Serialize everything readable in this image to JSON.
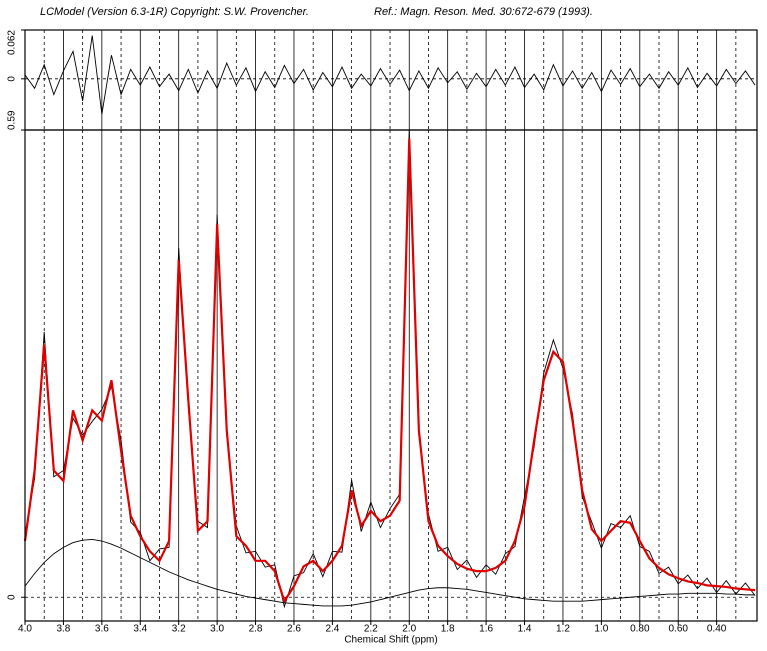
{
  "header": {
    "left": "LCModel (Version 6.3-1R) Copyright: S.W. Provencher.",
    "right": "Ref.: Magn. Reson. Med. 30:672-679 (1993)."
  },
  "chart_data": [
    {
      "type": "line",
      "x": [
        4.0,
        3.95,
        3.9,
        3.85,
        3.8,
        3.75,
        3.7,
        3.65,
        3.6,
        3.55,
        3.5,
        3.45,
        3.4,
        3.35,
        3.3,
        3.25,
        3.2,
        3.15,
        3.1,
        3.05,
        3.0,
        2.95,
        2.9,
        2.85,
        2.8,
        2.75,
        2.7,
        2.65,
        2.6,
        2.55,
        2.5,
        2.45,
        2.4,
        2.35,
        2.3,
        2.25,
        2.2,
        2.15,
        2.1,
        2.05,
        2.0,
        1.95,
        1.9,
        1.85,
        1.8,
        1.75,
        1.7,
        1.65,
        1.6,
        1.55,
        1.5,
        1.45,
        1.4,
        1.35,
        1.3,
        1.25,
        1.2,
        1.15,
        1.1,
        1.05,
        1.0,
        0.95,
        0.9,
        0.85,
        0.8,
        0.75,
        0.7,
        0.65,
        0.6,
        0.55,
        0.5,
        0.45,
        0.4,
        0.35,
        0.3,
        0.25,
        0.2
      ],
      "series": [
        {
          "color": "#000000",
          "values": [
            0.005,
            -0.012,
            0.018,
            -0.02,
            0.01,
            0.035,
            -0.028,
            0.055,
            -0.045,
            0.03,
            -0.02,
            0.012,
            -0.008,
            0.015,
            -0.01,
            0.006,
            -0.015,
            0.012,
            -0.018,
            0.01,
            -0.012,
            0.02,
            -0.008,
            0.014,
            -0.016,
            0.009,
            -0.011,
            0.017,
            -0.006,
            0.012,
            -0.014,
            0.008,
            -0.01,
            0.015,
            -0.012,
            0.006,
            -0.009,
            0.013,
            -0.007,
            0.011,
            -0.015,
            0.01,
            -0.012,
            0.014,
            -0.005,
            0.009,
            -0.013,
            0.007,
            -0.01,
            0.012,
            -0.008,
            0.015,
            -0.011,
            0.006,
            -0.014,
            0.018,
            -0.009,
            0.01,
            -0.012,
            0.008,
            -0.016,
            0.011,
            -0.007,
            0.013,
            -0.01,
            0.006,
            -0.012,
            0.009,
            -0.008,
            0.014,
            -0.011,
            0.007,
            -0.009,
            0.012,
            -0.006,
            0.01,
            -0.008
          ]
        }
      ],
      "xlim": [
        4.0,
        0.19
      ],
      "ylim": [
        -0.065,
        0.062
      ],
      "yticks": [
        0,
        0.062
      ],
      "xgrid": [
        3.9,
        3.8,
        3.7,
        3.6,
        3.5,
        3.4,
        3.3,
        3.2,
        3.1,
        3.0,
        2.9,
        2.8,
        2.7,
        2.6,
        2.5,
        2.4,
        2.3,
        2.2,
        2.1,
        2.0,
        1.9,
        1.8,
        1.7,
        1.6,
        1.5,
        1.4,
        1.3,
        1.2,
        1.1,
        1.0,
        0.9,
        0.8,
        0.7,
        0.6,
        0.5,
        0.4,
        0.3
      ]
    },
    {
      "type": "line",
      "x_label": "Chemical Shift (ppm)",
      "x": [
        4.0,
        3.95,
        3.9,
        3.85,
        3.8,
        3.75,
        3.7,
        3.65,
        3.6,
        3.55,
        3.5,
        3.45,
        3.4,
        3.35,
        3.3,
        3.25,
        3.2,
        3.15,
        3.1,
        3.05,
        3.0,
        2.95,
        2.9,
        2.85,
        2.8,
        2.75,
        2.7,
        2.65,
        2.6,
        2.55,
        2.5,
        2.45,
        2.4,
        2.35,
        2.3,
        2.25,
        2.2,
        2.15,
        2.1,
        2.05,
        2.0,
        1.95,
        1.9,
        1.85,
        1.8,
        1.75,
        1.7,
        1.65,
        1.6,
        1.55,
        1.5,
        1.45,
        1.4,
        1.35,
        1.3,
        1.25,
        1.2,
        1.15,
        1.1,
        1.05,
        1.0,
        0.95,
        0.9,
        0.85,
        0.8,
        0.75,
        0.7,
        0.65,
        0.6,
        0.55,
        0.5,
        0.45,
        0.4,
        0.35,
        0.3,
        0.25,
        0.2
      ],
      "series": [
        {
          "color": "#000000",
          "values": [
            0.08,
            0.15,
            0.335,
            0.152,
            0.16,
            0.226,
            0.205,
            0.222,
            0.237,
            0.266,
            0.198,
            0.095,
            0.082,
            0.046,
            0.061,
            0.063,
            0.441,
            0.24,
            0.096,
            0.088,
            0.483,
            0.205,
            0.09,
            0.056,
            0.058,
            0.038,
            0.041,
            -0.012,
            0.027,
            0.031,
            0.055,
            0.026,
            0.058,
            0.057,
            0.148,
            0.083,
            0.12,
            0.088,
            0.112,
            0.13,
            0.59,
            0.204,
            0.105,
            0.058,
            0.063,
            0.035,
            0.047,
            0.025,
            0.041,
            0.029,
            0.055,
            0.064,
            0.127,
            0.19,
            0.283,
            0.325,
            0.289,
            0.231,
            0.127,
            0.095,
            0.062,
            0.093,
            0.088,
            0.103,
            0.064,
            0.058,
            0.03,
            0.038,
            0.017,
            0.028,
            0.011,
            0.024,
            0.006,
            0.021,
            0.004,
            0.018,
            0.002
          ]
        },
        {
          "color": "#e00000",
          "values": [
            0.071,
            0.16,
            0.319,
            0.16,
            0.147,
            0.236,
            0.198,
            0.236,
            0.223,
            0.274,
            0.185,
            0.103,
            0.077,
            0.058,
            0.046,
            0.071,
            0.426,
            0.249,
            0.084,
            0.096,
            0.471,
            0.211,
            0.077,
            0.065,
            0.046,
            0.046,
            0.033,
            -0.005,
            0.014,
            0.039,
            0.046,
            0.033,
            0.046,
            0.065,
            0.135,
            0.09,
            0.109,
            0.096,
            0.103,
            0.122,
            0.579,
            0.211,
            0.096,
            0.065,
            0.052,
            0.042,
            0.036,
            0.033,
            0.033,
            0.037,
            0.046,
            0.071,
            0.115,
            0.198,
            0.274,
            0.31,
            0.297,
            0.223,
            0.135,
            0.086,
            0.071,
            0.084,
            0.096,
            0.094,
            0.071,
            0.049,
            0.037,
            0.029,
            0.024,
            0.02,
            0.018,
            0.015,
            0.014,
            0.013,
            0.011,
            0.01,
            0.009
          ]
        },
        {
          "color": "#000000",
          "values": [
            0.014,
            0.03,
            0.044,
            0.055,
            0.063,
            0.069,
            0.072,
            0.073,
            0.071,
            0.067,
            0.062,
            0.056,
            0.05,
            0.044,
            0.038,
            0.032,
            0.027,
            0.022,
            0.018,
            0.014,
            0.01,
            0.007,
            0.004,
            0.001,
            -0.001,
            -0.003,
            -0.005,
            -0.007,
            -0.008,
            -0.009,
            -0.01,
            -0.011,
            -0.011,
            -0.011,
            -0.01,
            -0.008,
            -0.006,
            -0.003,
            0.0,
            0.003,
            0.006,
            0.009,
            0.011,
            0.012,
            0.012,
            0.011,
            0.01,
            0.008,
            0.006,
            0.004,
            0.002,
            0.0,
            -0.002,
            -0.003,
            -0.004,
            -0.005,
            -0.005,
            -0.005,
            -0.005,
            -0.004,
            -0.003,
            -0.002,
            -0.001,
            0.0,
            0.001,
            0.002,
            0.003,
            0.004,
            0.004,
            0.005,
            0.005,
            0.005,
            0.005,
            0.004,
            0.004,
            0.003,
            0.003
          ]
        }
      ],
      "xlim": [
        4.0,
        0.19
      ],
      "ylim": [
        -0.03,
        0.59
      ],
      "yticks": [
        0,
        0.59
      ],
      "xticks": [
        {
          "value": 4.0,
          "label": "4.0"
        },
        3.8,
        3.6,
        3.4,
        3.2,
        {
          "value": 3.0,
          "label": "3.0"
        },
        2.8,
        2.6,
        2.4,
        2.2,
        {
          "value": 2.0,
          "label": "2.0"
        },
        1.8,
        1.6,
        1.4,
        1.2,
        {
          "value": 1.0,
          "label": "1.0"
        },
        {
          "value": 0.8,
          "label": "0.80"
        },
        {
          "value": 0.6,
          "label": "0.60"
        },
        {
          "value": 0.4,
          "label": "0.40"
        }
      ],
      "xgrid": [
        3.9,
        3.8,
        3.7,
        3.6,
        3.5,
        3.4,
        3.3,
        3.2,
        3.1,
        3.0,
        2.9,
        2.8,
        2.7,
        2.6,
        2.5,
        2.4,
        2.3,
        2.2,
        2.1,
        2.0,
        1.9,
        1.8,
        1.7,
        1.6,
        1.5,
        1.4,
        1.3,
        1.2,
        1.1,
        1.0,
        0.9,
        0.8,
        0.7,
        0.6,
        0.5,
        0.4,
        0.3
      ]
    }
  ]
}
